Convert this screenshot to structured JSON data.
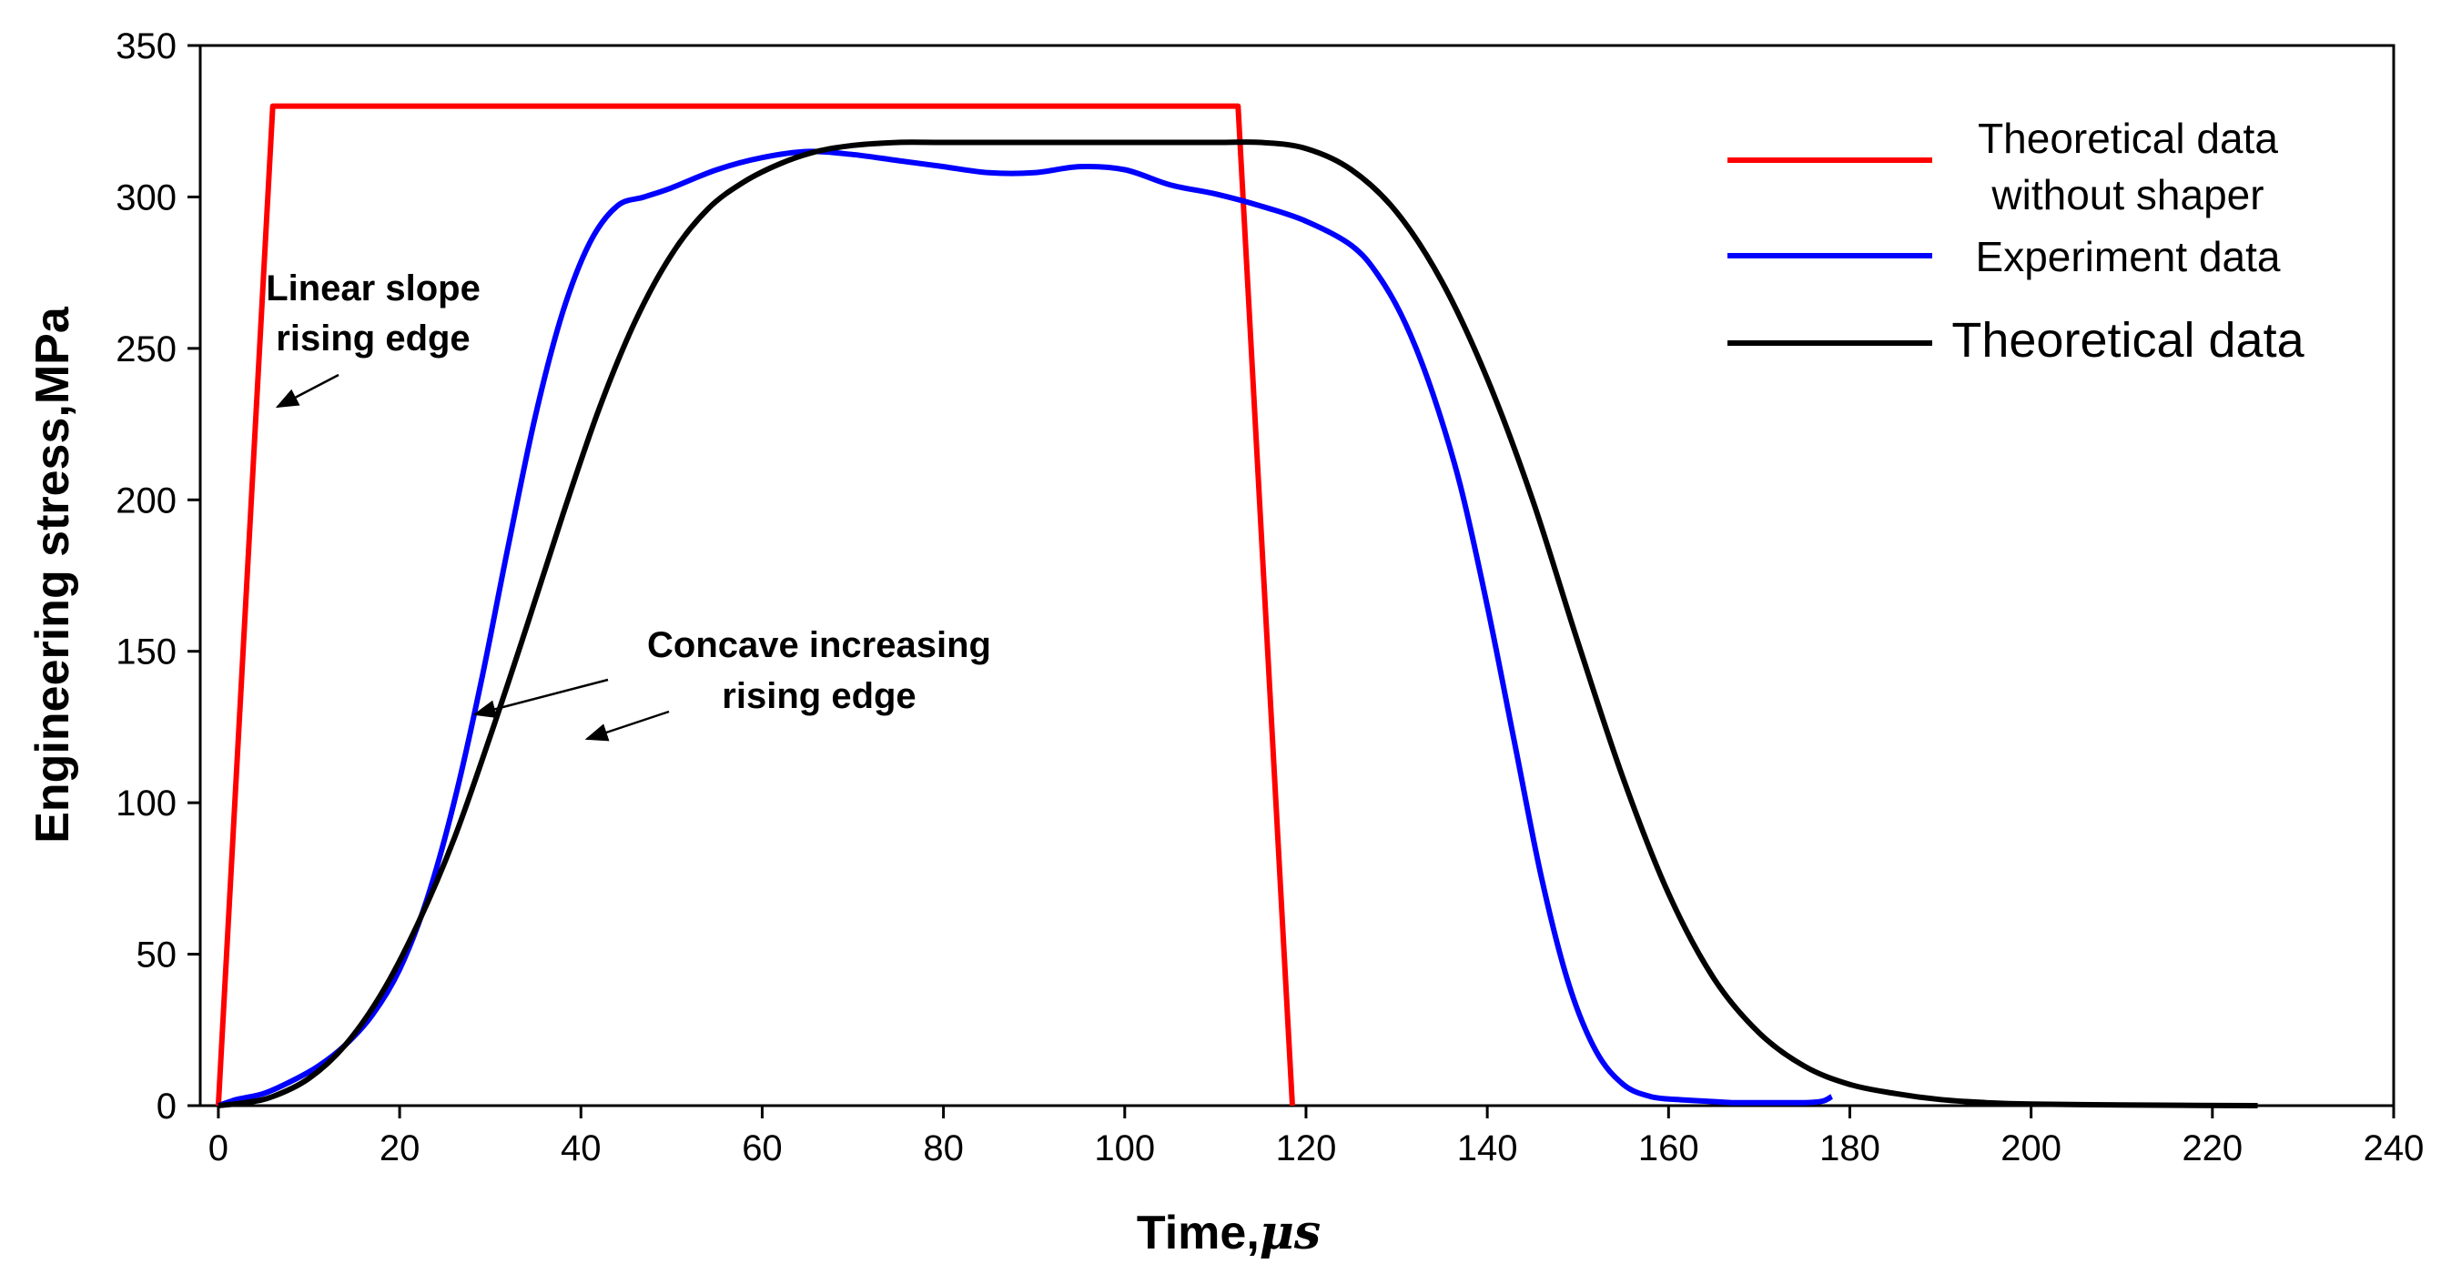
{
  "chart_data": {
    "type": "line",
    "title": "",
    "xlabel": "Time,",
    "xlabel_unit": "μs",
    "ylabel": "Engineering stress,MPa",
    "xlim": [
      -2,
      240
    ],
    "ylim": [
      0,
      350
    ],
    "x_ticks": [
      0,
      20,
      40,
      60,
      80,
      100,
      120,
      140,
      160,
      180,
      200,
      220,
      240
    ],
    "y_ticks": [
      0,
      50,
      100,
      150,
      200,
      250,
      300,
      350
    ],
    "grid": false,
    "legend_position": "top-right",
    "legend": [
      {
        "lines": [
          "Theoretical data",
          "without shaper"
        ],
        "color": "#ff0000"
      },
      {
        "lines": [
          "Experiment data"
        ],
        "color": "#0000ff"
      },
      {
        "lines": [
          "Theoretical data"
        ],
        "color": "#000000"
      }
    ],
    "annotations": [
      {
        "lines": [
          "Linear slope",
          "rising edge"
        ]
      },
      {
        "lines": [
          "Concave increasing",
          "rising edge"
        ]
      }
    ],
    "series": [
      {
        "name": "Theoretical data without shaper",
        "color": "#ff0000",
        "x": [
          0,
          6,
          112.5,
          118.5
        ],
        "y": [
          0,
          330,
          330,
          0
        ]
      },
      {
        "name": "Experiment data",
        "color": "#0000ff",
        "x": [
          0,
          2,
          5,
          8,
          11,
          14,
          17,
          20,
          23,
          26,
          29,
          32,
          35,
          38,
          41,
          44,
          47,
          50,
          55,
          60,
          65,
          70,
          75,
          80,
          85,
          90,
          95,
          100,
          105,
          110,
          115,
          120,
          125,
          128,
          131,
          134,
          137,
          140,
          143,
          146,
          149,
          152,
          155,
          158,
          161,
          164,
          167,
          170,
          175,
          177,
          178
        ],
        "y": [
          0,
          2,
          4,
          8,
          13,
          20,
          30,
          45,
          68,
          100,
          140,
          185,
          228,
          262,
          285,
          297,
          300,
          303,
          309,
          313,
          315,
          314,
          312,
          310,
          308,
          308,
          310,
          309,
          304,
          301,
          297,
          292,
          284,
          274,
          258,
          235,
          205,
          165,
          120,
          75,
          40,
          18,
          7,
          3,
          2,
          1.5,
          1,
          1,
          1,
          1.5,
          3
        ]
      },
      {
        "name": "Theoretical data",
        "color": "#000000",
        "x": [
          0,
          3,
          6,
          10,
          14,
          18,
          22,
          26,
          30,
          34,
          38,
          42,
          46,
          50,
          54,
          58,
          62,
          66,
          70,
          75,
          80,
          90,
          100,
          110,
          115,
          120,
          125,
          130,
          135,
          140,
          145,
          150,
          155,
          160,
          165,
          170,
          175,
          180,
          185,
          190,
          195,
          200,
          210,
          225
        ],
        "y": [
          0,
          1,
          3,
          9,
          20,
          37,
          60,
          88,
          122,
          158,
          195,
          230,
          259,
          281,
          296,
          305,
          311,
          315,
          317,
          318,
          318,
          318,
          318,
          318,
          318,
          316,
          309,
          295,
          272,
          240,
          200,
          153,
          108,
          70,
          42,
          24,
          13,
          7,
          4,
          2,
          1,
          0.5,
          0.2,
          0
        ]
      }
    ]
  }
}
